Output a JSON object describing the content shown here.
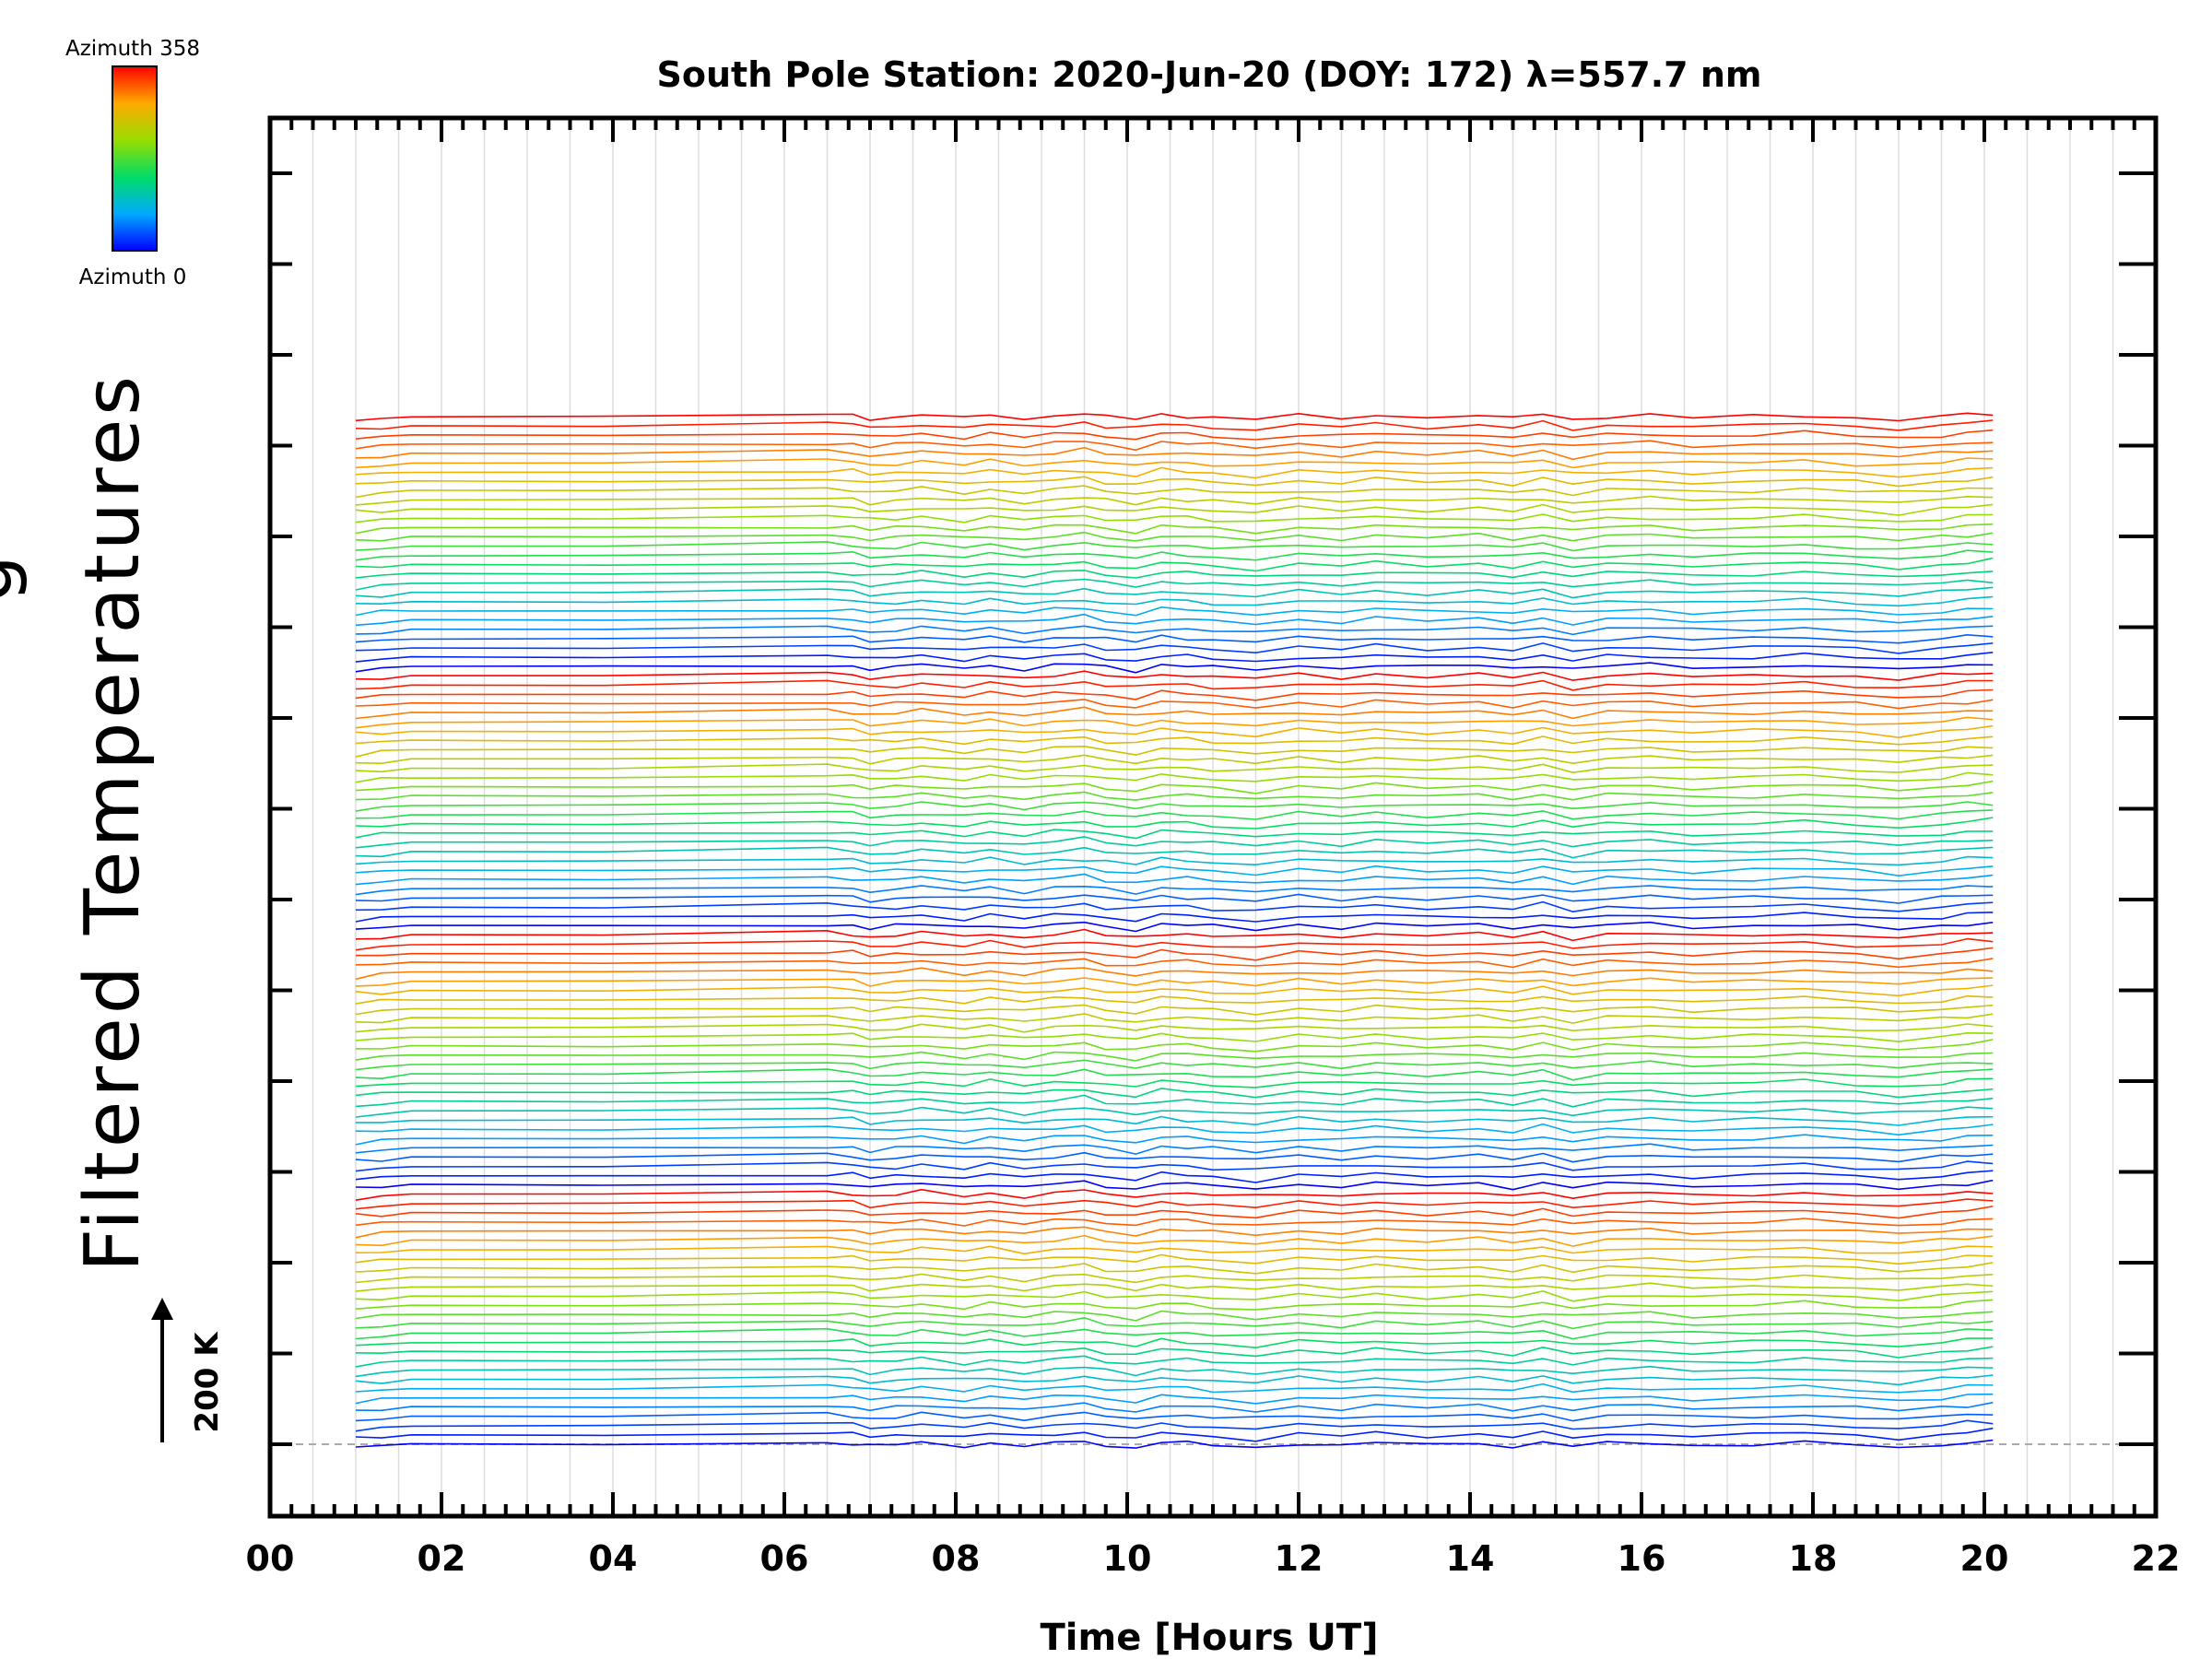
{
  "chart_data": {
    "type": "line",
    "title": "South Pole Station: 2020-Jun-20 (DOY: 172) λ=557.7 nm",
    "xlabel": "Time [Hours UT]",
    "ylabel": "Filtered Temperatures",
    "ylabel_partial": "g",
    "xlim": [
      0,
      22
    ],
    "x_ticks": [
      "00",
      "02",
      "04",
      "06",
      "08",
      "10",
      "12",
      "14",
      "16",
      "18",
      "20",
      "22"
    ],
    "x_minor_step": 0.25,
    "grid": "vertical",
    "y_ticks_visible": false,
    "y_major_tick_count": 15,
    "scale_indicator": "200 K",
    "scale_indicator_kelvin": 200,
    "baseline": "dashed",
    "legend": {
      "type": "colorbar",
      "placement": "top-left",
      "top_label": "Azimuth 358",
      "bottom_label": "Azimuth 0",
      "colormap": "rainbow",
      "azimuth_min": 0,
      "azimuth_max": 358
    },
    "series_stack": {
      "count": 112,
      "groups": 4,
      "series_per_group": 28,
      "offset_kelvin": 20.5,
      "description": "Stacked filtered temperature traces, one per azimuth, each offset vertically; colour encodes azimuth (blue = 0, red = 358)"
    },
    "x": [
      1.0,
      1.3,
      1.65,
      3.9,
      6.5,
      6.8,
      7.0,
      7.3,
      7.6,
      8.1,
      8.4,
      8.8,
      9.15,
      9.5,
      9.75,
      10.1,
      10.4,
      10.7,
      11.0,
      11.5,
      12.0,
      12.5,
      12.9,
      13.5,
      14.1,
      14.5,
      14.85,
      15.2,
      15.6,
      16.1,
      16.6,
      17.3,
      17.9,
      18.5,
      19.0,
      19.5,
      19.8,
      20.1
    ],
    "series_pattern_kelvin": [
      -11,
      -6,
      2,
      0,
      6,
      3,
      -6,
      -1,
      5,
      -5,
      4,
      -6,
      3,
      9,
      -2,
      -9,
      5,
      2,
      -3,
      -10,
      3,
      -4,
      5,
      -2,
      3,
      -5,
      7,
      -9,
      2,
      4,
      -3,
      1,
      5,
      -2,
      -9,
      0,
      7,
      10
    ],
    "series_pattern_variation_kelvin": 9
  }
}
